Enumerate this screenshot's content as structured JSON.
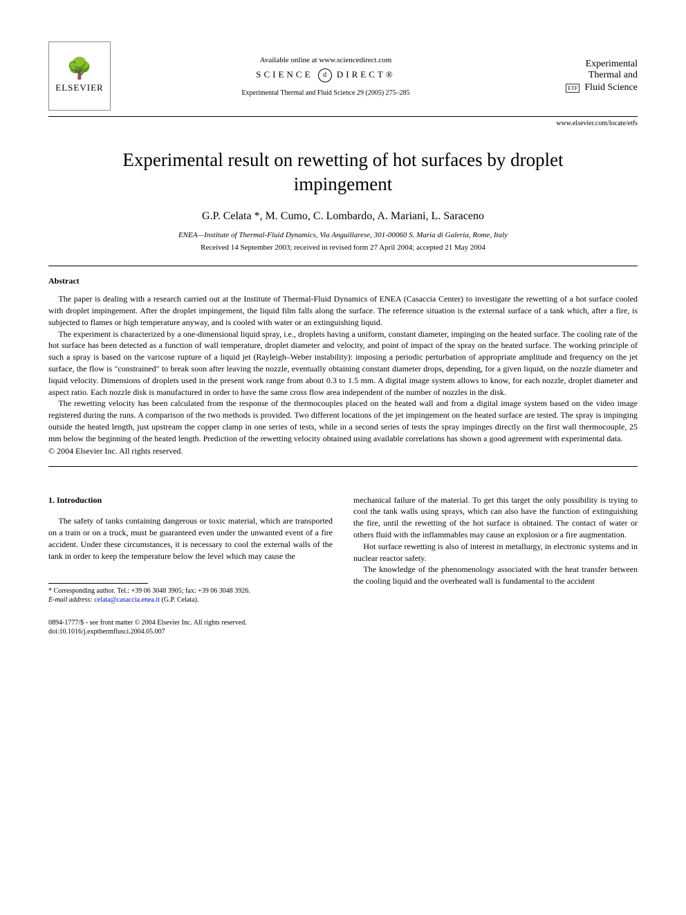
{
  "header": {
    "publisher_name": "ELSEVIER",
    "available_text": "Available online at www.sciencedirect.com",
    "sciencedirect_left": "SCIENCE",
    "sciencedirect_right": "DIRECT®",
    "journal_reference": "Experimental Thermal and Fluid Science 29 (2005) 275–285",
    "journal_logo_line1": "Experimental",
    "journal_logo_line2": "Thermal and",
    "journal_logo_line3": "Fluid Science",
    "etf_abbrev": "ETF",
    "locate_url": "www.elsevier.com/locate/etfs"
  },
  "article": {
    "title": "Experimental result on rewetting of hot surfaces by droplet impingement",
    "authors": "G.P. Celata *, M. Cumo, C. Lombardo, A. Mariani, L. Saraceno",
    "affiliation": "ENEA—Institute of Thermal-Fluid Dynamics, Via Anguillarese, 301-00060 S. Maria di Galeria, Rome, Italy",
    "dates": "Received 14 September 2003; received in revised form 27 April 2004; accepted 21 May 2004"
  },
  "abstract": {
    "heading": "Abstract",
    "p1": "The paper is dealing with a research carried out at the Institute of Thermal-Fluid Dynamics of ENEA (Casaccia Center) to investigate the rewetting of a hot surface cooled with droplet impingement. After the droplet impingement, the liquid film falls along the surface. The reference situation is the external surface of a tank which, after a fire, is subjected to flames or high temperature anyway, and is cooled with water or an extinguishing liquid.",
    "p2": "The experiment is characterized by a one-dimensional liquid spray, i.e., droplets having a uniform, constant diameter, impinging on the heated surface. The cooling rate of the hot surface has been detected as a function of wall temperature, droplet diameter and velocity, and point of impact of the spray on the heated surface. The working principle of such a spray is based on the varicose rupture of a liquid jet (Rayleigh–Weber instability): imposing a periodic perturbation of appropriate amplitude and frequency on the jet surface, the flow is \"constrained\" to break soon after leaving the nozzle, eventually obtaining constant diameter drops, depending, for a given liquid, on the nozzle diameter and liquid velocity. Dimensions of droplets used in the present work range from about 0.3 to 1.5 mm. A digital image system allows to know, for each nozzle, droplet diameter and aspect ratio. Each nozzle disk is manufactured in order to have the same cross flow area independent of the number of nozzles in the disk.",
    "p3": "The rewetting velocity has been calculated from the response of the thermocouples placed on the heated wall and from a digital image system based on the video image registered during the runs. A comparison of the two methods is provided. Two different locations of the jet impingement on the heated surface are tested. The spray is impinging outside the heated length, just upstream the copper clamp in one series of tests, while in a second series of tests the spray impinges directly on the first wall thermocouple, 25 mm below the beginning of the heated length. Prediction of the rewetting velocity obtained using available correlations has shown a good agreement with experimental data.",
    "copyright": "© 2004 Elsevier Inc. All rights reserved."
  },
  "introduction": {
    "heading": "1. Introduction",
    "left_p1": "The safety of tanks containing dangerous or toxic material, which are transported on a train or on a truck, must be guaranteed even under the unwanted event of a fire accident. Under these circumstances, it is necessary to cool the external walls of the tank in order to keep the temperature below the level which may cause the",
    "right_p1": "mechanical failure of the material. To get this target the only possibility is trying to cool the tank walls using sprays, which can also have the function of extinguishing the fire, until the rewetting of the hot surface is obtained. The contact of water or others fluid with the inflammables may cause an explosion or a fire augmentation.",
    "right_p2": "Hot surface rewetting is also of interest in metallurgy, in electronic systems and in nuclear reactor safety.",
    "right_p3": "The knowledge of the phenomenology associated with the heat transfer between the cooling liquid and the overheated wall is fundamental to the accident"
  },
  "footnote": {
    "corresponding": "* Corresponding author. Tel.: +39 06 3048 3905; fax: +39 06 3048 3926.",
    "email_label": "E-mail address:",
    "email": "celata@casaccia.enea.it",
    "email_author": "(G.P. Celata)."
  },
  "bottom": {
    "line1": "0894-1777/$ - see front matter © 2004 Elsevier Inc. All rights reserved.",
    "line2": "doi:10.1016/j.expthermflusci.2004.05.007"
  }
}
